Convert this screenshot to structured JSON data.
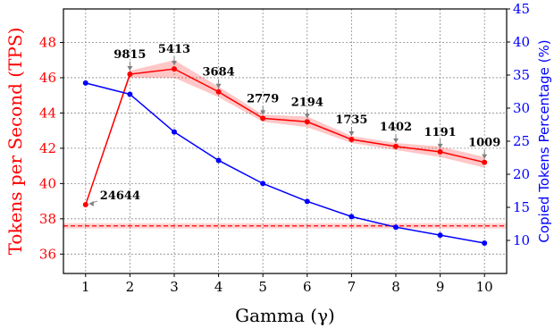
{
  "chart_data": {
    "type": "line",
    "title": "",
    "xlabel": "Gamma (γ)",
    "ylabel_left": "Tokens per Second (TPS)",
    "ylabel_right": "Copied Tokens Percentage (%)",
    "x": [
      1,
      2,
      3,
      4,
      5,
      6,
      7,
      8,
      9,
      10
    ],
    "xlim": [
      0.5,
      10.5
    ],
    "ylim_left": [
      34.9,
      49.9
    ],
    "ylim_right": [
      5,
      45
    ],
    "left_ticks": [
      36,
      38,
      40,
      42,
      44,
      46,
      48
    ],
    "right_ticks": [
      10,
      15,
      20,
      25,
      30,
      35,
      40,
      45
    ],
    "grid": true,
    "baseline": {
      "axis": "left",
      "value": 37.6,
      "band": [
        37.45,
        37.75
      ],
      "color": "#ff0000",
      "style": "dashed"
    },
    "series": [
      {
        "axis": "left",
        "color": "#ff0000",
        "values": [
          38.8,
          46.2,
          46.5,
          45.2,
          43.7,
          43.5,
          42.5,
          42.1,
          41.8,
          41.2
        ],
        "band_low": [
          38.8,
          46.0,
          46.0,
          44.9,
          43.5,
          43.2,
          42.3,
          41.9,
          41.5,
          40.9
        ],
        "band_high": [
          38.8,
          46.4,
          47.0,
          45.5,
          43.9,
          43.8,
          42.7,
          42.3,
          42.1,
          41.5
        ],
        "annotations": [
          "24644",
          "9815",
          "5413",
          "3684",
          "2779",
          "2194",
          "1735",
          "1402",
          "1191",
          "1009"
        ]
      },
      {
        "axis": "right",
        "color": "#0000ff",
        "values": [
          33.8,
          32.1,
          26.4,
          22.1,
          18.6,
          15.9,
          13.6,
          12.0,
          10.8,
          9.6
        ]
      }
    ]
  }
}
